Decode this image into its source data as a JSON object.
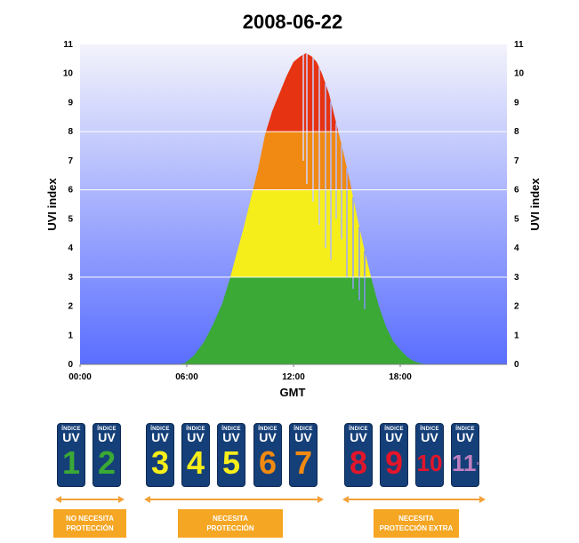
{
  "chart_data": {
    "type": "area",
    "title": "2008-06-22",
    "xlabel": "GMT",
    "ylabel": "UVI index",
    "ylabel_right": "UVI index",
    "xlim": [
      0,
      24
    ],
    "ylim": [
      0,
      11
    ],
    "x_ticks": [
      "00:00",
      "06:00",
      "12:00",
      "18:00"
    ],
    "x_tick_values": [
      0,
      6,
      12,
      18
    ],
    "y_ticks": [
      "0",
      "1",
      "2",
      "3",
      "4",
      "5",
      "6",
      "7",
      "8",
      "9",
      "10",
      "11"
    ],
    "y_gridlines": [
      3,
      6,
      8
    ],
    "background": {
      "top": "#f3f3fb",
      "bottom": "#5a6eff"
    },
    "color_bands": [
      {
        "from": 0,
        "to": 3,
        "color": "#3aa935"
      },
      {
        "from": 3,
        "to": 6,
        "color": "#f5ee1a"
      },
      {
        "from": 6,
        "to": 8,
        "color": "#f18a12"
      },
      {
        "from": 8,
        "to": 11,
        "color": "#e63312"
      }
    ],
    "series": [
      {
        "x": [
          5.5,
          5.9,
          6.4,
          7.0,
          7.5,
          8.0,
          8.4,
          8.8,
          9.2,
          9.6,
          10.0,
          10.4,
          10.8,
          11.2,
          11.6,
          12.0,
          12.4,
          12.7,
          13.0,
          13.3,
          13.6,
          14.0,
          14.4,
          14.8,
          15.2,
          15.6,
          16.0,
          16.4,
          16.8,
          17.2,
          17.6,
          18.0,
          18.4,
          18.8,
          19.2,
          19.6
        ],
        "y": [
          0.0,
          0.05,
          0.3,
          0.8,
          1.4,
          2.1,
          2.9,
          3.8,
          4.7,
          5.7,
          6.7,
          7.9,
          8.7,
          9.3,
          9.9,
          10.4,
          10.6,
          10.7,
          10.6,
          10.4,
          10.0,
          9.3,
          8.3,
          7.3,
          6.2,
          5.0,
          3.9,
          2.9,
          2.0,
          1.3,
          0.8,
          0.5,
          0.25,
          0.1,
          0.03,
          0.0
        ]
      }
    ],
    "cloud_dips": [
      {
        "x": 12.55,
        "y": 7.0
      },
      {
        "x": 12.75,
        "y": 6.2
      },
      {
        "x": 13.1,
        "y": 5.6
      },
      {
        "x": 13.45,
        "y": 4.8
      },
      {
        "x": 13.8,
        "y": 4.0
      },
      {
        "x": 14.1,
        "y": 3.6
      },
      {
        "x": 14.4,
        "y": 5.0
      },
      {
        "x": 14.7,
        "y": 4.3
      },
      {
        "x": 15.0,
        "y": 3.0
      },
      {
        "x": 15.35,
        "y": 2.6
      },
      {
        "x": 15.7,
        "y": 2.2
      },
      {
        "x": 16.0,
        "y": 1.9
      }
    ]
  },
  "legend": {
    "cards": [
      {
        "index": "ÍNDICE",
        "uv": "UV",
        "value": "1",
        "color": "#3aa935"
      },
      {
        "index": "ÍNDICE",
        "uv": "UV",
        "value": "2",
        "color": "#3aa935"
      },
      {
        "index": "ÍNDICE",
        "uv": "UV",
        "value": "3",
        "color": "#f5ee1a"
      },
      {
        "index": "ÍNDICE",
        "uv": "UV",
        "value": "4",
        "color": "#f5ee1a"
      },
      {
        "index": "ÍNDICE",
        "uv": "UV",
        "value": "5",
        "color": "#f5ee1a"
      },
      {
        "index": "ÍNDICE",
        "uv": "UV",
        "value": "6",
        "color": "#f18a12"
      },
      {
        "index": "ÍNDICE",
        "uv": "UV",
        "value": "7",
        "color": "#f18a12"
      },
      {
        "index": "ÍNDICE",
        "uv": "UV",
        "value": "8",
        "color": "#e2162b"
      },
      {
        "index": "ÍNDICE",
        "uv": "UV",
        "value": "9",
        "color": "#e2162b"
      },
      {
        "index": "ÍNDICE",
        "uv": "UV",
        "value": "10",
        "color": "#e2162b"
      },
      {
        "index": "ÍNDICE",
        "uv": "UV",
        "value": "11+",
        "color": "#c17fc0"
      }
    ],
    "groups": [
      {
        "label": "NO NECESITA\nPROTECCIÓN"
      },
      {
        "label": "NECESITA\nPROTECCIÓN"
      },
      {
        "label": "NECESITA\nPROTECCIÓN EXTRA"
      }
    ],
    "arrow_color": "#f2a13a",
    "tag_color": "#f5a623"
  }
}
